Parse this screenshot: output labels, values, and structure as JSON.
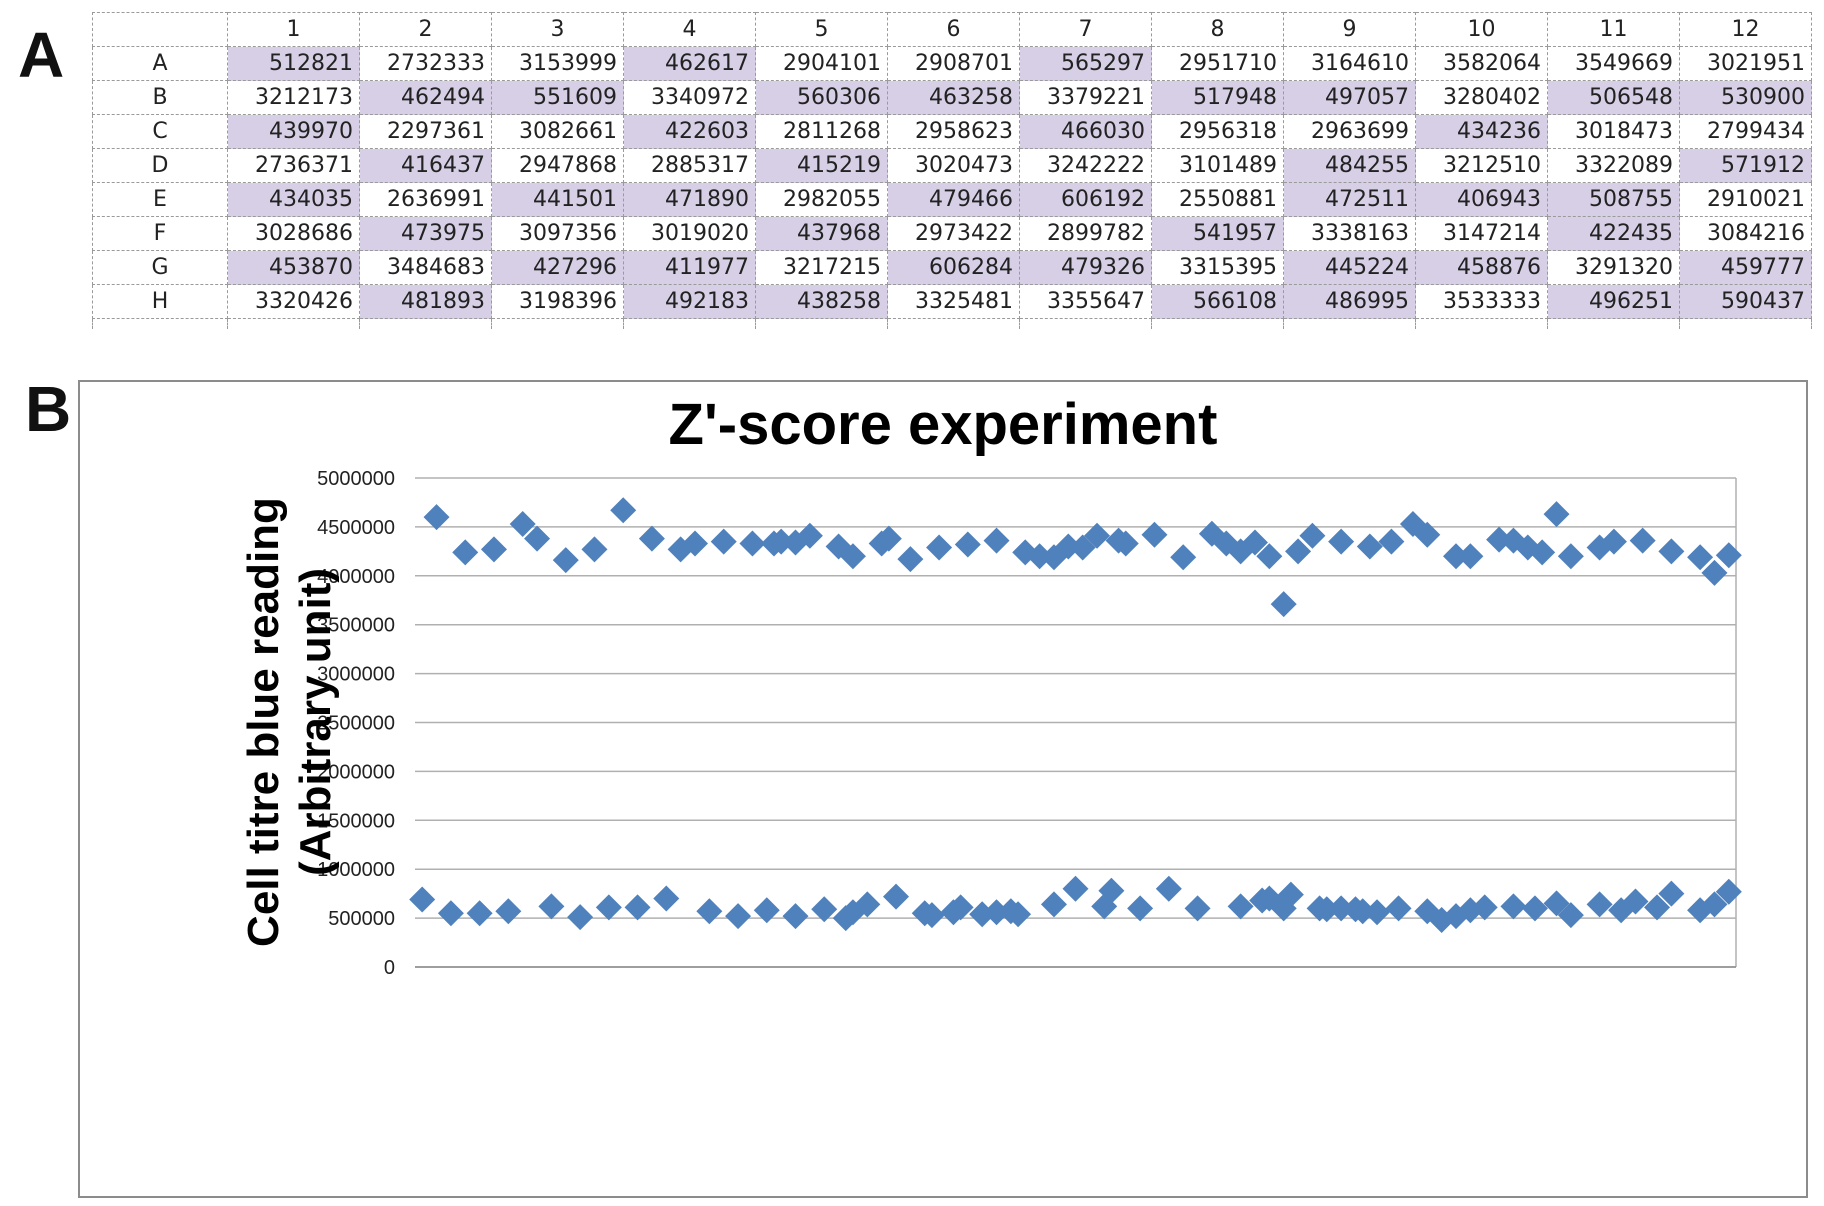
{
  "panels": {
    "a": "A",
    "b": "B"
  },
  "plate_table": {
    "columns": [
      "1",
      "2",
      "3",
      "4",
      "5",
      "6",
      "7",
      "8",
      "9",
      "10",
      "11",
      "12"
    ],
    "rows": [
      {
        "label": "A",
        "values": [
          "512821",
          "2732333",
          "3153999",
          "462617",
          "2904101",
          "2908701",
          "565297",
          "2951710",
          "3164610",
          "3582064",
          "3549669",
          "3021951"
        ],
        "highlight": [
          1,
          0,
          0,
          1,
          0,
          0,
          1,
          0,
          0,
          0,
          0,
          0
        ]
      },
      {
        "label": "B",
        "values": [
          "3212173",
          "462494",
          "551609",
          "3340972",
          "560306",
          "463258",
          "3379221",
          "517948",
          "497057",
          "3280402",
          "506548",
          "530900"
        ],
        "highlight": [
          0,
          1,
          1,
          0,
          1,
          1,
          0,
          1,
          1,
          0,
          1,
          1
        ]
      },
      {
        "label": "C",
        "values": [
          "439970",
          "2297361",
          "3082661",
          "422603",
          "2811268",
          "2958623",
          "466030",
          "2956318",
          "2963699",
          "434236",
          "3018473",
          "2799434"
        ],
        "highlight": [
          1,
          0,
          0,
          1,
          0,
          0,
          1,
          0,
          0,
          1,
          0,
          0
        ]
      },
      {
        "label": "D",
        "values": [
          "2736371",
          "416437",
          "2947868",
          "2885317",
          "415219",
          "3020473",
          "3242222",
          "3101489",
          "484255",
          "3212510",
          "3322089",
          "571912"
        ],
        "highlight": [
          0,
          1,
          0,
          0,
          1,
          0,
          0,
          0,
          1,
          0,
          0,
          1
        ]
      },
      {
        "label": "E",
        "values": [
          "434035",
          "2636991",
          "441501",
          "471890",
          "2982055",
          "479466",
          "606192",
          "2550881",
          "472511",
          "406943",
          "508755",
          "2910021"
        ],
        "highlight": [
          1,
          0,
          1,
          1,
          0,
          1,
          1,
          0,
          1,
          1,
          1,
          0
        ]
      },
      {
        "label": "F",
        "values": [
          "3028686",
          "473975",
          "3097356",
          "3019020",
          "437968",
          "2973422",
          "2899782",
          "541957",
          "3338163",
          "3147214",
          "422435",
          "3084216"
        ],
        "highlight": [
          0,
          1,
          0,
          0,
          1,
          0,
          0,
          1,
          0,
          0,
          1,
          0
        ]
      },
      {
        "label": "G",
        "values": [
          "453870",
          "3484683",
          "427296",
          "411977",
          "3217215",
          "606284",
          "479326",
          "3315395",
          "445224",
          "458876",
          "3291320",
          "459777"
        ],
        "highlight": [
          1,
          0,
          1,
          1,
          0,
          1,
          1,
          0,
          1,
          1,
          0,
          1
        ]
      },
      {
        "label": "H",
        "values": [
          "3320426",
          "481893",
          "3198396",
          "492183",
          "438258",
          "3325481",
          "3355647",
          "566108",
          "486995",
          "3533333",
          "496251",
          "590437"
        ],
        "highlight": [
          0,
          1,
          0,
          1,
          1,
          0,
          0,
          1,
          1,
          0,
          1,
          1
        ]
      }
    ],
    "highlight_color": "#d7cfe6"
  },
  "chart_data": {
    "type": "scatter",
    "title": "Z'-score experiment",
    "ylabel_line1": "Cell titre blue reading",
    "ylabel_line2": "(Arbitrary unit)",
    "xlabel": "",
    "ylim": [
      0,
      5000000
    ],
    "yticks": [
      "0",
      "500000",
      "1000000",
      "1500000",
      "2000000",
      "2500000",
      "3000000",
      "3500000",
      "4000000",
      "4500000",
      "5000000"
    ],
    "marker": "diamond",
    "marker_color": "#4f81bd",
    "grid": "horizontal",
    "series": [
      {
        "x": [
          1,
          2,
          3,
          4,
          5,
          6,
          7,
          8,
          9,
          10,
          11,
          12,
          13,
          14,
          15,
          16,
          17,
          18,
          19,
          20,
          21,
          22,
          23,
          24,
          25,
          26,
          27,
          28,
          29,
          30,
          31,
          32,
          33,
          34,
          35,
          36,
          37,
          38,
          39,
          40,
          41,
          42,
          43,
          44,
          45,
          46,
          47,
          48,
          49,
          50,
          51,
          52,
          53,
          54,
          55,
          56,
          57,
          58,
          59,
          60,
          61,
          62,
          63
        ],
        "y": [
          4600000,
          4240000,
          4270000,
          4530000,
          4380000,
          4160000,
          4270000,
          4670000,
          4380000,
          4270000,
          4330000,
          4350000,
          4330000,
          4350000,
          4410000,
          4300000,
          4330000,
          4170000,
          4290000,
          4320000,
          4360000,
          4240000,
          4200000,
          4300000,
          4410000,
          4330000,
          4420000,
          4190000,
          4430000,
          4330000,
          4340000,
          4200000,
          3710000,
          4410000,
          4350000,
          4300000,
          4530000,
          4200000,
          4200000,
          4370000,
          4290000,
          4630000,
          4200000,
          4290000,
          4350000,
          4360000,
          4250000,
          4190000,
          4030000,
          4210000,
          4330000,
          4340000,
          4190000,
          4250000,
          4290000,
          4360000,
          4200000,
          4380000,
          4250000,
          4350000,
          4420000,
          4360000,
          4240000
        ],
        "xs": [
          1.5,
          3.5,
          5.5,
          7.5,
          8.5,
          10.5,
          12.5,
          14.5,
          16.5,
          18.5,
          19.5,
          21.5,
          23.5,
          25.5,
          27.5,
          29.5,
          32.5,
          34.5,
          36.5,
          38.5,
          40.5,
          42.5,
          43.5,
          45.5,
          47.5,
          49.5,
          51.5,
          53.5,
          55.5,
          56.5,
          58.5,
          59.5,
          60.5,
          62.5,
          64.5,
          66.5,
          69.5,
          72.5,
          73.5,
          75.5,
          77.5,
          79.5,
          80.5,
          82.5,
          83.5,
          85.5,
          87.5,
          89.5,
          90.5,
          91.5,
          25.0,
          26.5,
          44.5,
          57.5,
          46.5,
          49.0,
          30.5,
          33.0,
          61.5,
          68.0,
          70.5,
          76.5,
          78.5
        ]
      },
      {
        "x": [
          1,
          2,
          3,
          4,
          5,
          6,
          7,
          8,
          9,
          10,
          11,
          12,
          13,
          14,
          15,
          16,
          17,
          18,
          19,
          20,
          21,
          22,
          23,
          24,
          25,
          26,
          27,
          28,
          29,
          30,
          31,
          32,
          33,
          34,
          35,
          36,
          37,
          38,
          39,
          40,
          41,
          42,
          43,
          44,
          45,
          46,
          47,
          48,
          49,
          50,
          51,
          52,
          53,
          54,
          55,
          56,
          57,
          58,
          59,
          60,
          61,
          62
        ],
        "y": [
          690000,
          550000,
          550000,
          570000,
          620000,
          510000,
          610000,
          610000,
          700000,
          570000,
          520000,
          580000,
          520000,
          590000,
          500000,
          640000,
          720000,
          550000,
          560000,
          540000,
          570000,
          640000,
          800000,
          780000,
          600000,
          800000,
          600000,
          620000,
          680000,
          740000,
          600000,
          600000,
          590000,
          560000,
          600000,
          570000,
          480000,
          580000,
          620000,
          650000,
          530000,
          640000,
          670000,
          750000,
          580000,
          770000,
          700000,
          590000,
          620000,
          540000,
          560000,
          610000,
          560000,
          530000,
          600000,
          570000,
          520000,
          610000,
          600000,
          580000,
          610000,
          640000
        ],
        "xs": [
          0.5,
          2.5,
          4.5,
          6.5,
          9.5,
          11.5,
          13.5,
          15.5,
          17.5,
          20.5,
          22.5,
          24.5,
          26.5,
          28.5,
          30.0,
          31.5,
          33.5,
          35.5,
          37.5,
          39.5,
          41.5,
          44.5,
          46.0,
          48.5,
          50.5,
          52.5,
          54.5,
          57.5,
          59.0,
          61.0,
          63.0,
          64.5,
          65.5,
          67.0,
          68.5,
          70.5,
          71.5,
          73.5,
          76.5,
          79.5,
          80.5,
          82.5,
          85.0,
          87.5,
          89.5,
          91.5,
          59.5,
          63.5,
          48.0,
          42.0,
          40.5,
          38.0,
          30.5,
          36.0,
          60.5,
          66.0,
          72.5,
          74.5,
          78.0,
          84.0,
          86.5,
          90.5
        ]
      }
    ]
  }
}
